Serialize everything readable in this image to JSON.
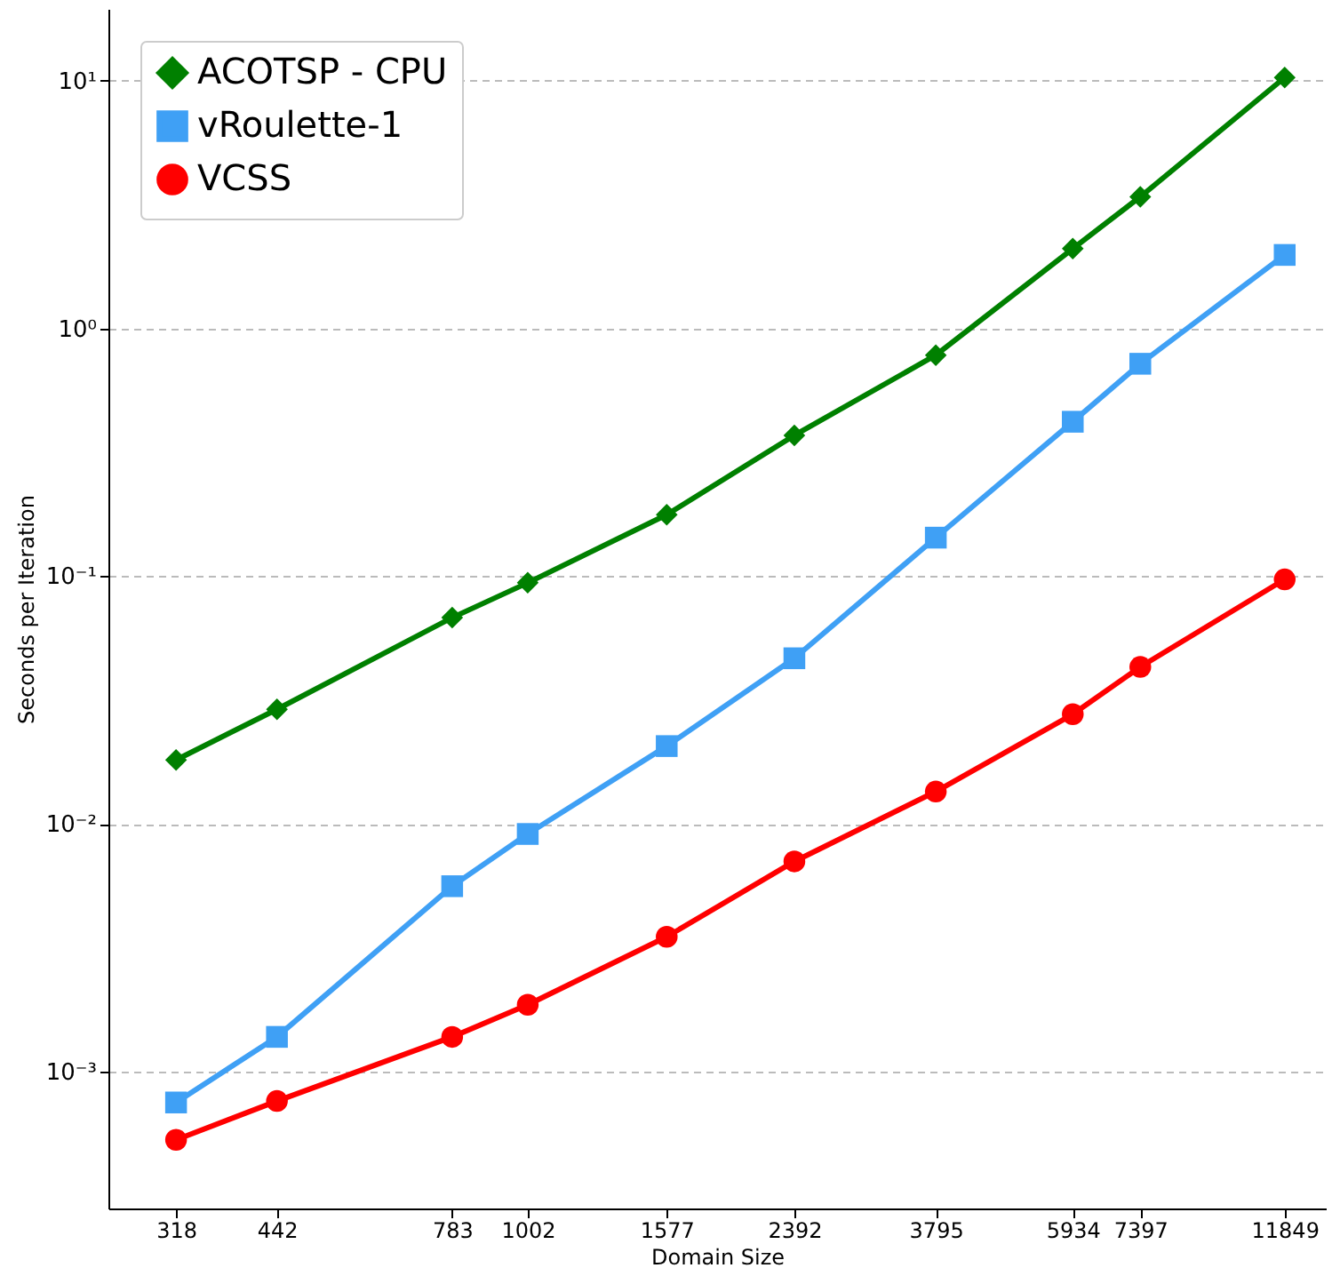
{
  "chart_data": {
    "type": "line",
    "xlabel": "Domain Size",
    "ylabel": "Seconds per Iteration",
    "x": [
      318,
      442,
      783,
      1002,
      1577,
      2392,
      3795,
      5934,
      7397,
      11849
    ],
    "series": [
      {
        "name": "ACOTSP - CPU",
        "color": "#008000",
        "marker": "diamond",
        "values": [
          0.0181,
          0.029,
          0.068,
          0.094,
          0.177,
          0.37,
          0.78,
          2.1,
          3.4,
          10.3
        ]
      },
      {
        "name": "vRoulette-1",
        "color": "#3fa0f5",
        "marker": "square",
        "values": [
          0.00075,
          0.00138,
          0.0056,
          0.0091,
          0.0206,
          0.0466,
          0.143,
          0.42,
          0.72,
          1.98
        ]
      },
      {
        "name": "VCSS",
        "color": "#ff0000",
        "marker": "circle",
        "values": [
          0.00053,
          0.00076,
          0.00138,
          0.00186,
          0.0035,
          0.00705,
          0.0135,
          0.0277,
          0.043,
          0.097
        ]
      }
    ],
    "log": "xy",
    "xlim": [
      255,
      13550
    ],
    "ylim": [
      0.00028,
      19.5
    ],
    "xticks": [
      318,
      442,
      783,
      1002,
      1577,
      2392,
      3795,
      5934,
      7397,
      11849
    ],
    "yticks": [
      {
        "value": 0.001,
        "label": "10⁻³"
      },
      {
        "value": 0.01,
        "label": "10⁻²"
      },
      {
        "value": 0.1,
        "label": "10⁻¹"
      },
      {
        "value": 1,
        "label": "10⁰"
      },
      {
        "value": 10,
        "label": "10¹"
      }
    ],
    "grid": "y",
    "legend": "top left",
    "line_style": "solid"
  }
}
